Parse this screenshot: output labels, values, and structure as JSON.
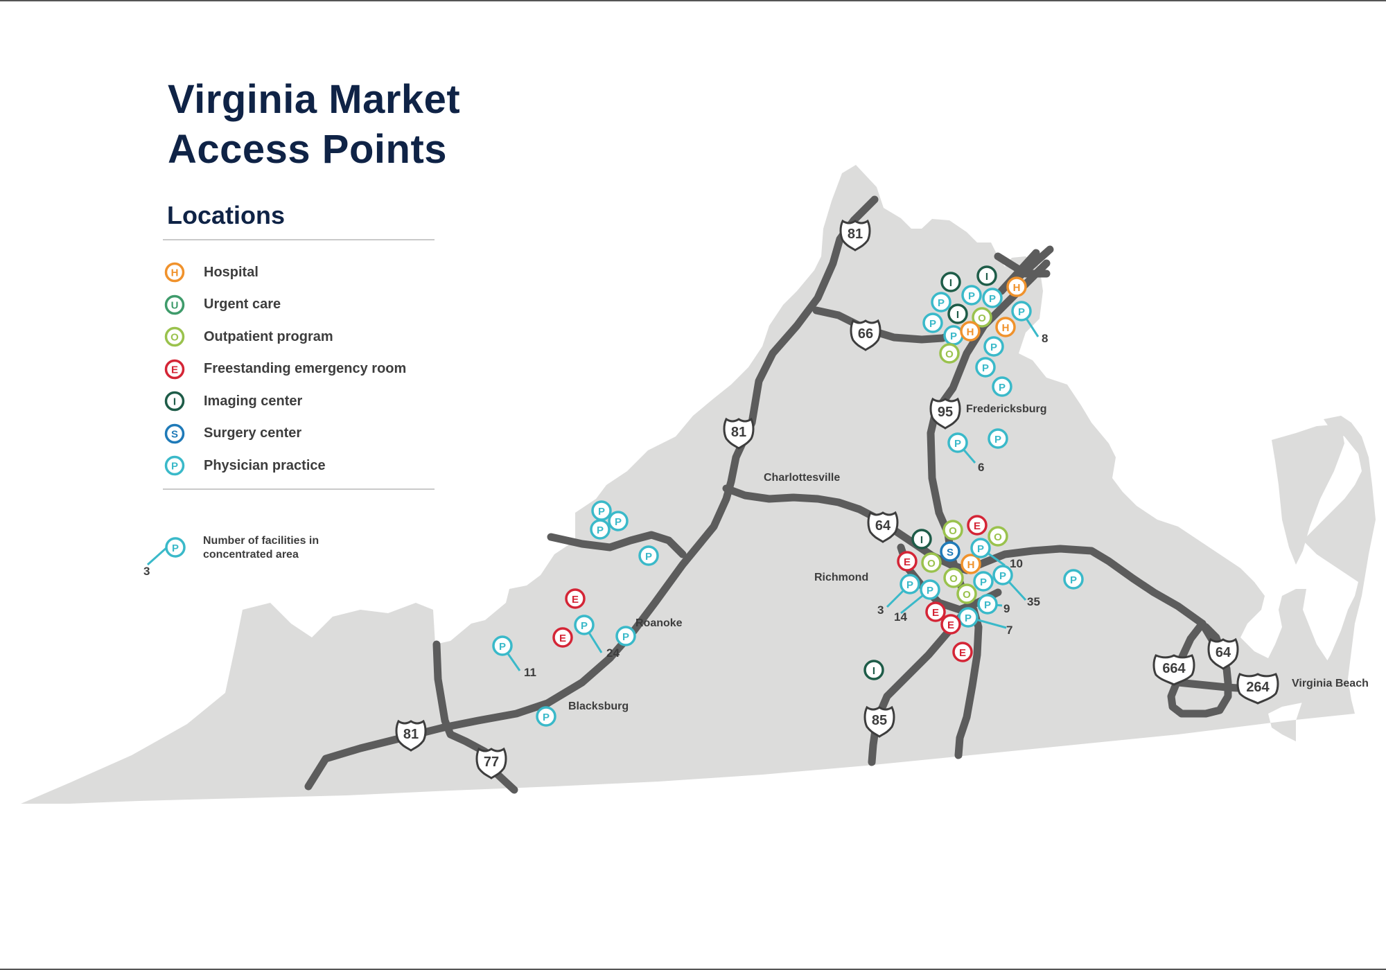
{
  "title": {
    "line1": "Virginia Market",
    "line2": "Access Points"
  },
  "legend": {
    "heading": "Locations",
    "items": [
      {
        "letter": "H",
        "label": "Hospital",
        "color": "#f0922c",
        "style": "ring"
      },
      {
        "letter": "U",
        "label": "Urgent care",
        "color": "#3f9b6b",
        "style": "ring"
      },
      {
        "letter": "O",
        "label": "Outpatient program",
        "color": "#9ac24d",
        "style": "ring"
      },
      {
        "letter": "E",
        "label": "Freestanding emergency room",
        "color": "#d42536",
        "style": "ring"
      },
      {
        "letter": "I",
        "label": "Imaging center",
        "color": "#1e5c48",
        "style": "ring"
      },
      {
        "letter": "S",
        "label": "Surgery center",
        "color": "#1f7ab8",
        "style": "ring"
      },
      {
        "letter": "P",
        "label": "Physician practice",
        "color": "#3ab9c9",
        "style": "ring"
      }
    ],
    "concentration_note": "Number of facilities in concentrated area",
    "concentration_example_number": "3"
  },
  "cities": {
    "fredericksburg": "Fredericksburg",
    "charlottesville": "Charlottesville",
    "richmond": "Richmond",
    "roanoke": "Roanoke",
    "blacksburg": "Blacksburg",
    "virginia_beach": "Virginia Beach"
  },
  "highways": {
    "i81a": "81",
    "i81b": "81",
    "i81c": "81",
    "i66": "66",
    "i95": "95",
    "i64a": "64",
    "i64b": "64",
    "i85": "85",
    "i77": "77",
    "i664": "664",
    "i264": "264"
  },
  "count_labels": {
    "nova": "8",
    "fred": "6",
    "roanoke_east": "24",
    "roanoke_west": "11",
    "rich_3": "3",
    "rich_14": "14",
    "rich_9": "9",
    "rich_7": "7",
    "rich_35": "35",
    "rich_10": "10"
  },
  "markers": [
    {
      "type": "I",
      "count": null
    },
    {
      "type": "I",
      "count": null
    },
    {
      "type": "H",
      "count": null
    },
    {
      "type": "P",
      "count": null
    },
    {
      "type": "P",
      "count": null
    },
    {
      "type": "P",
      "count": null
    },
    {
      "type": "I",
      "count": null
    },
    {
      "type": "O",
      "count": null
    },
    {
      "type": "P",
      "count": "8"
    },
    {
      "type": "P",
      "count": null
    },
    {
      "type": "P",
      "count": null
    },
    {
      "type": "H",
      "count": null
    },
    {
      "type": "H",
      "count": null
    },
    {
      "type": "O",
      "count": null
    },
    {
      "type": "P",
      "count": null
    },
    {
      "type": "P",
      "count": null
    },
    {
      "type": "P",
      "count": null
    },
    {
      "type": "P",
      "count": "6"
    },
    {
      "type": "P",
      "count": null
    },
    {
      "type": "P",
      "count": null
    },
    {
      "type": "P",
      "count": null
    },
    {
      "type": "P",
      "count": null
    },
    {
      "type": "P",
      "count": null
    },
    {
      "type": "E",
      "count": null
    },
    {
      "type": "E",
      "count": null
    },
    {
      "type": "P",
      "count": "24"
    },
    {
      "type": "P",
      "count": null
    },
    {
      "type": "P",
      "count": "11"
    },
    {
      "type": "P",
      "count": null
    },
    {
      "type": "I",
      "count": null
    },
    {
      "type": "O",
      "count": null
    },
    {
      "type": "E",
      "count": null
    },
    {
      "type": "O",
      "count": null
    },
    {
      "type": "E",
      "count": null
    },
    {
      "type": "O",
      "count": null
    },
    {
      "type": "S",
      "count": null
    },
    {
      "type": "H",
      "count": null
    },
    {
      "type": "P",
      "count": "10"
    },
    {
      "type": "P",
      "count": "3"
    },
    {
      "type": "P",
      "count": "14"
    },
    {
      "type": "O",
      "count": null
    },
    {
      "type": "P",
      "count": null
    },
    {
      "type": "P",
      "count": "35"
    },
    {
      "type": "O",
      "count": null
    },
    {
      "type": "P",
      "count": "9"
    },
    {
      "type": "E",
      "count": null
    },
    {
      "type": "P",
      "count": "7"
    },
    {
      "type": "E",
      "count": null
    },
    {
      "type": "E",
      "count": null
    },
    {
      "type": "P",
      "count": null
    },
    {
      "type": "I",
      "count": null
    }
  ]
}
